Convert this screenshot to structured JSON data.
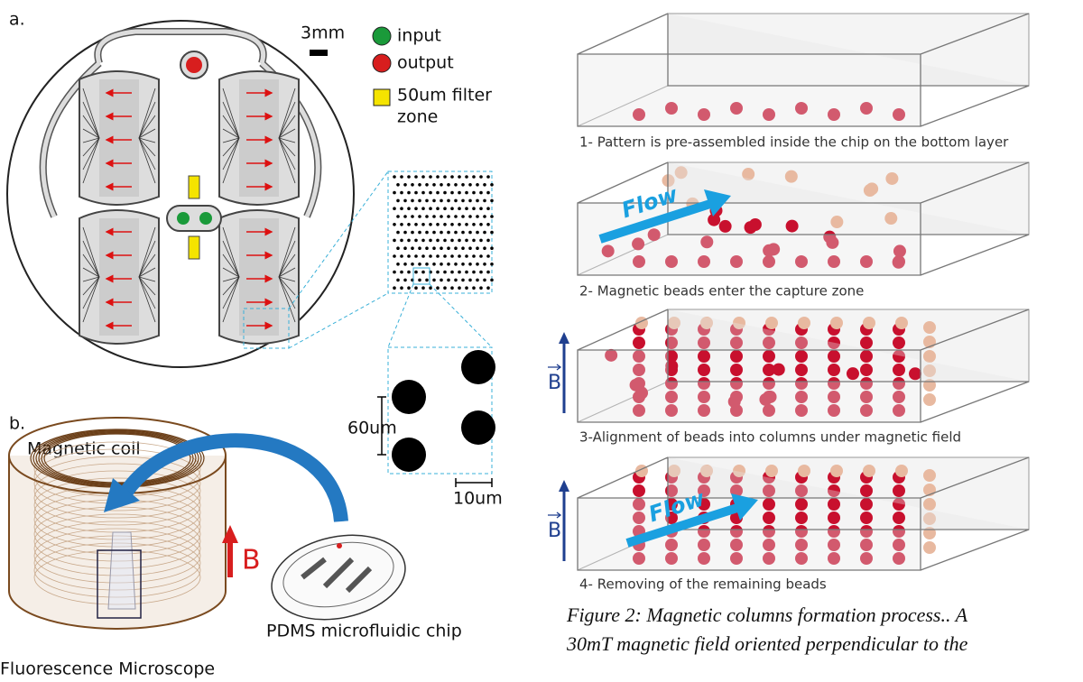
{
  "panel_a": {
    "label": "a.",
    "scale_bar": "3mm",
    "legend": {
      "input": "input",
      "output": "output",
      "filter_zone": [
        "50um filter",
        "zone"
      ]
    },
    "zoom": {
      "spacing": "60um",
      "diameter": "10um"
    }
  },
  "panel_b": {
    "label": "b.",
    "coil": "Magnetic coil",
    "field": "B",
    "chip": "PDMS microfluidic chip",
    "microscope": "Fluorescence Microscope"
  },
  "steps": [
    {
      "caption": "1- Pattern is pre-assembled inside the chip on the bottom layer"
    },
    {
      "caption": "2- Magnetic beads enter the capture zone",
      "flow": "Flow"
    },
    {
      "caption": "3-Alignment of beads into columns under magnetic field",
      "field": "B"
    },
    {
      "caption": "4- Removing of the remaining beads",
      "flow": "Flow",
      "field": "B"
    }
  ],
  "figure_caption": [
    "Figure 2: Magnetic columns formation process.. A",
    "30mT magnetic field oriented perpendicular to the"
  ]
}
